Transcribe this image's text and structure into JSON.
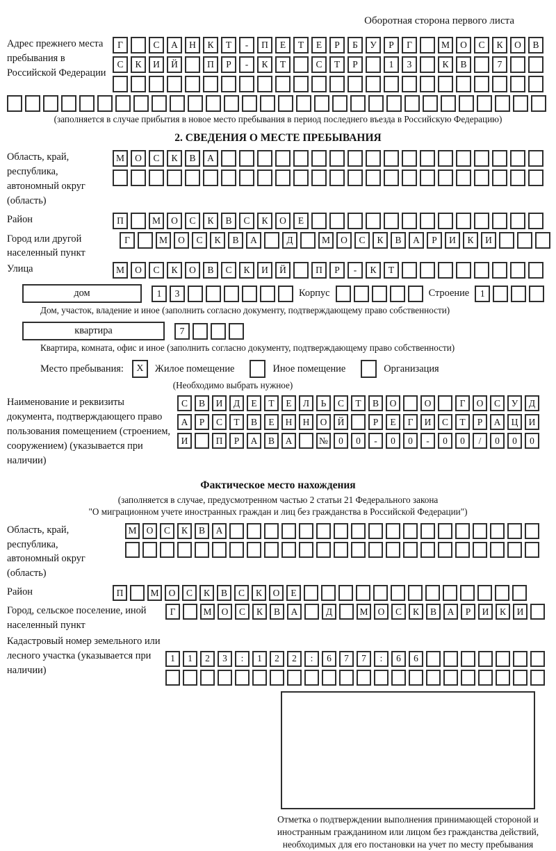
{
  "header": {
    "note": "Оборотная сторона первого листа"
  },
  "prev_address": {
    "label": "Адрес прежнего места пребывания в Российской Федерации",
    "row1": {
      "len": 24,
      "text": "Г САНКТ-ПЕТЕРБУРГ МОСКОВ"
    },
    "row2": {
      "len": 24,
      "text": "СКИЙ ПР-КТ СТР 13 КВ 7"
    },
    "row3": {
      "len": 24,
      "text": ""
    },
    "row4": {
      "len": 30,
      "text": ""
    },
    "note": "(заполняется в случае прибытия в новое место пребывания в период последнего въезда в Российскую Федерацию)"
  },
  "section2": {
    "title": "2. СВЕДЕНИЯ О МЕСТЕ ПРЕБЫВАНИЯ",
    "region": {
      "label": "Область, край, республика, автономный округ (область)",
      "row1": {
        "len": 24,
        "text": "МОСКВА"
      },
      "row2": {
        "len": 24,
        "text": ""
      }
    },
    "district": {
      "label": "Район",
      "row": {
        "len": 24,
        "text": "П МОСКВСКОЕ"
      }
    },
    "city": {
      "label": "Город или другой населенный пункт",
      "row": {
        "len": 24,
        "text": "Г МОСКВА Д МОСКВАРИКИ"
      }
    },
    "street": {
      "label": "Улица",
      "row": {
        "len": 24,
        "text": "МОСКОВСКИЙ ПР-КТ"
      }
    },
    "house": {
      "field_label": "дом",
      "cells": {
        "len": 8,
        "text": "13"
      },
      "korpus_label": "Корпус",
      "korpus_cells": {
        "len": 5,
        "text": ""
      },
      "stroenie_label": "Строение",
      "stroenie_cells": {
        "len": 4,
        "text": "1"
      },
      "note": "Дом, участок, владение и иное (заполнить согласно документу, подтверждающему право собственности)"
    },
    "apartment": {
      "field_label": "квартира",
      "cells": {
        "len": 4,
        "text": "7"
      },
      "note": "Квартира, комната, офис и иное (заполнить согласно документу, подтверждающему право собственности)"
    },
    "stay_type": {
      "label": "Место пребывания:",
      "options": [
        {
          "label": "Жилое помещение",
          "mark": "X"
        },
        {
          "label": "Иное помещение",
          "mark": ""
        },
        {
          "label": "Организация",
          "mark": ""
        }
      ],
      "note": "(Необходимо выбрать нужное)"
    },
    "document": {
      "label": "Наименование и реквизиты документа, подтверждающего право пользования помещением (строением, сооружением) (указывается при наличии)",
      "row1": {
        "len": 21,
        "text": "СВИДЕТЕЛЬСТВО О ГОСУД"
      },
      "row2": {
        "len": 21,
        "text": "АРСТВЕННОЙ РЕГИСТРАЦИ"
      },
      "row3": {
        "len": 21,
        "text": "И ПРАВА №00-00-00/000"
      }
    }
  },
  "actual_location": {
    "title": "Фактическое место нахождения",
    "note1": "(заполняется в случае, предусмотренном частью 2 статьи 21 Федерального закона",
    "note2": "\"О миграционном учете иностранных граждан и лиц без гражданства в Российской Федерации\")",
    "region": {
      "label": "Область, край, республика, автономный округ (область)",
      "row1": {
        "len": 24,
        "text": "МОСКВА"
      },
      "row2": {
        "len": 24,
        "text": ""
      }
    },
    "district": {
      "label": "Район",
      "row": {
        "len": 24,
        "text": "П МОСКВСКОЕ"
      }
    },
    "city": {
      "label": "Город, сельское поселение, иной населенный пункт",
      "row": {
        "len": 22,
        "text": "Г МОСКВА Д МОСКВАРИКИ"
      }
    },
    "cadastral": {
      "label": "Кадастровый номер земельного или лесного участка (указывается при наличии)",
      "row1": {
        "len": 22,
        "text": "1123:122:677:66"
      },
      "row2": {
        "len": 22,
        "text": ""
      }
    }
  },
  "confirmation": {
    "caption": "Отметка о подтверждении выполнения принимающей стороной и иностранным гражданином или лицом без гражданства действий, необходимых для его постановки на учет по месту пребывания"
  }
}
